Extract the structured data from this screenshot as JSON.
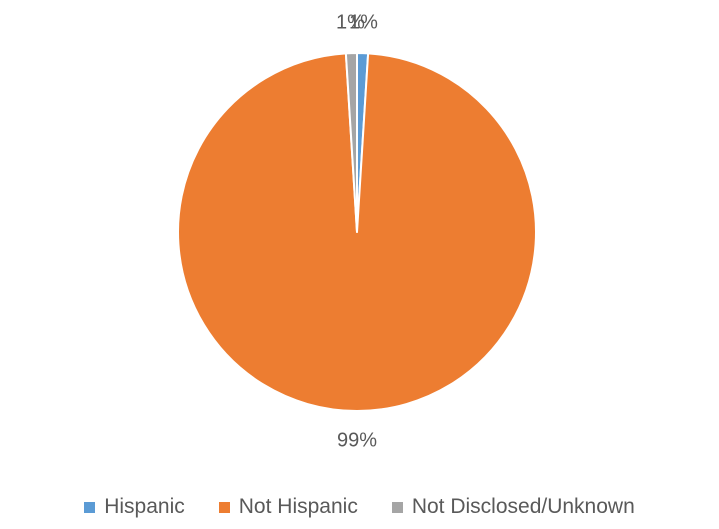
{
  "chart_data": {
    "type": "pie",
    "title": "",
    "categories": [
      "Hispanic",
      "Not Hispanic",
      "Not Disclosed/Unknown"
    ],
    "values": [
      1,
      99,
      1
    ],
    "labels": [
      "1%",
      "99%",
      "1%"
    ],
    "colors": [
      "#5B9BD5",
      "#ED7D31",
      "#A5A5A5"
    ],
    "start_angle_deg": 0,
    "direction": "clockwise",
    "legend_position": "bottom"
  },
  "legend": {
    "items": [
      {
        "label": "Hispanic",
        "color": "#5B9BD5"
      },
      {
        "label": "Not Hispanic",
        "color": "#ED7D31"
      },
      {
        "label": "Not Disclosed/Unknown",
        "color": "#A5A5A5"
      }
    ]
  }
}
